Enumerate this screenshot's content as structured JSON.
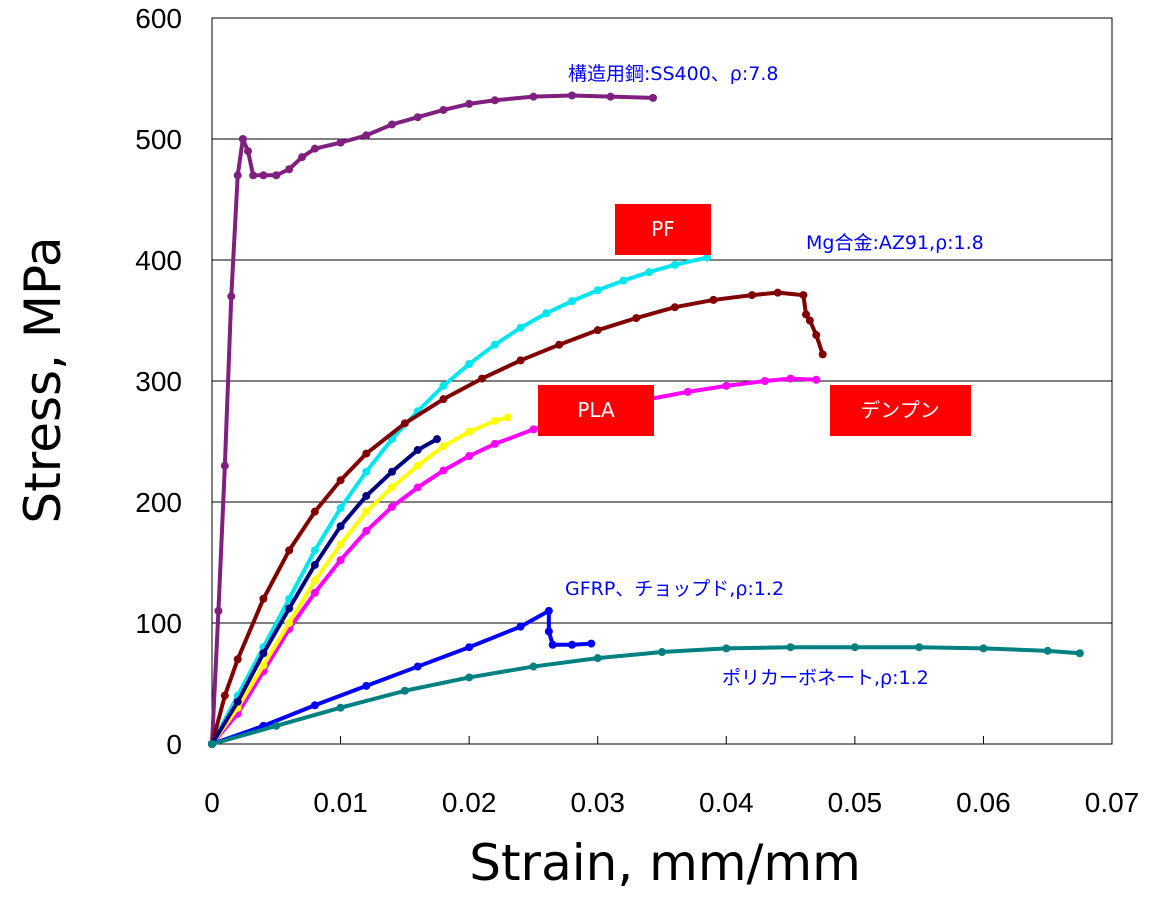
{
  "chart_data": {
    "type": "scatter",
    "xlabel": "Strain, mm/mm",
    "ylabel": "Stress, MPa",
    "xlim": [
      0,
      0.07
    ],
    "ylim": [
      0,
      600
    ],
    "x_ticks": [
      "0",
      "0.01",
      "0.02",
      "0.03",
      "0.04",
      "0.05",
      "0.06",
      "0.07"
    ],
    "y_ticks": [
      "0",
      "100",
      "200",
      "300",
      "400",
      "500",
      "600"
    ],
    "grid": "horizontal major gridlines",
    "legend": "none",
    "series": [
      {
        "color": "#7F1F7F",
        "label_ref": 0,
        "x": [
          0,
          0.0005,
          0.001,
          0.0015,
          0.002,
          0.0024,
          0.0028,
          0.0032,
          0.004,
          0.005,
          0.006,
          0.007,
          0.008,
          0.01,
          0.012,
          0.014,
          0.016,
          0.018,
          0.02,
          0.022,
          0.025,
          0.028,
          0.031,
          0.0343
        ],
        "y": [
          0,
          110,
          230,
          370,
          470,
          500,
          490,
          470,
          470,
          470,
          475,
          485,
          492,
          497,
          503,
          512,
          518,
          524,
          529,
          532,
          535,
          536,
          535,
          534
        ]
      },
      {
        "color": "#00E5EE",
        "label_ref": 1,
        "x": [
          0,
          0.002,
          0.004,
          0.006,
          0.008,
          0.01,
          0.012,
          0.014,
          0.016,
          0.018,
          0.02,
          0.022,
          0.024,
          0.026,
          0.028,
          0.03,
          0.032,
          0.034,
          0.036,
          0.0385
        ],
        "y": [
          0,
          40,
          80,
          120,
          160,
          195,
          225,
          252,
          275,
          296,
          314,
          330,
          344,
          356,
          366,
          375,
          383,
          390,
          396,
          402
        ]
      },
      {
        "color": "#800000",
        "label_ref": 2,
        "x": [
          0,
          0.001,
          0.002,
          0.004,
          0.006,
          0.008,
          0.01,
          0.012,
          0.015,
          0.018,
          0.021,
          0.024,
          0.027,
          0.03,
          0.033,
          0.036,
          0.039,
          0.042,
          0.044,
          0.046,
          0.0462,
          0.0465,
          0.047,
          0.0475
        ],
        "y": [
          0,
          40,
          70,
          120,
          160,
          192,
          218,
          240,
          265,
          285,
          302,
          317,
          330,
          342,
          352,
          361,
          367,
          371,
          373,
          371,
          355,
          350,
          338,
          322
        ]
      },
      {
        "color": "#FF00FF",
        "label_ref": 3,
        "x": [
          0,
          0.002,
          0.004,
          0.006,
          0.008,
          0.01,
          0.012,
          0.014,
          0.016,
          0.018,
          0.02,
          0.022,
          0.025,
          0.028,
          0.031,
          0.034,
          0.037,
          0.04,
          0.043,
          0.045,
          0.047
        ],
        "y": [
          0,
          25,
          60,
          95,
          125,
          152,
          176,
          196,
          212,
          226,
          238,
          248,
          260,
          270,
          278,
          285,
          291,
          296,
          300,
          302,
          301
        ]
      },
      {
        "color": "#FFFF00",
        "label_ref": -1,
        "x": [
          0,
          0.002,
          0.004,
          0.006,
          0.008,
          0.01,
          0.012,
          0.014,
          0.016,
          0.018,
          0.02,
          0.022,
          0.023
        ],
        "y": [
          0,
          30,
          65,
          100,
          135,
          165,
          192,
          212,
          230,
          246,
          258,
          267,
          270
        ]
      },
      {
        "color": "#000080",
        "label_ref": -1,
        "x": [
          0,
          0.002,
          0.004,
          0.006,
          0.008,
          0.01,
          0.012,
          0.014,
          0.016,
          0.0175
        ],
        "y": [
          0,
          35,
          75,
          112,
          148,
          180,
          205,
          225,
          243,
          252
        ]
      },
      {
        "color": "#0000FF",
        "label_ref": 4,
        "x": [
          0,
          0.004,
          0.008,
          0.012,
          0.016,
          0.02,
          0.024,
          0.0262,
          0.0262,
          0.0265,
          0.028,
          0.0295
        ],
        "y": [
          0,
          15,
          32,
          48,
          64,
          80,
          97,
          110,
          93,
          82,
          82,
          83
        ]
      },
      {
        "color": "#008080",
        "label_ref": 5,
        "x": [
          0,
          0.005,
          0.01,
          0.015,
          0.02,
          0.025,
          0.03,
          0.035,
          0.04,
          0.045,
          0.05,
          0.055,
          0.06,
          0.065,
          0.0675
        ],
        "y": [
          0,
          15,
          30,
          44,
          55,
          64,
          71,
          76,
          79,
          80,
          80,
          80,
          79,
          77,
          75
        ]
      }
    ],
    "annotations": [
      {
        "text": "構造用鋼:SS400、ρ:7.8",
        "color": "#0000FF"
      },
      {
        "text": "Mg合金:AZ91,ρ:1.8",
        "color": "#0000FF"
      },
      {
        "text": "",
        "color": "#0000FF"
      },
      {
        "text": "",
        "color": "#0000FF"
      },
      {
        "text": "GFRP、チョップド,ρ:1.2",
        "color": "#0000FF"
      },
      {
        "text": "ポリカーボネート,ρ:1.2",
        "color": "#0000FF"
      }
    ],
    "boxed_labels": [
      {
        "text": "PF",
        "color": "#FF0000"
      },
      {
        "text": "PLA",
        "color": "#FF0000"
      },
      {
        "text": "デンプン",
        "color": "#FF0000"
      }
    ]
  }
}
